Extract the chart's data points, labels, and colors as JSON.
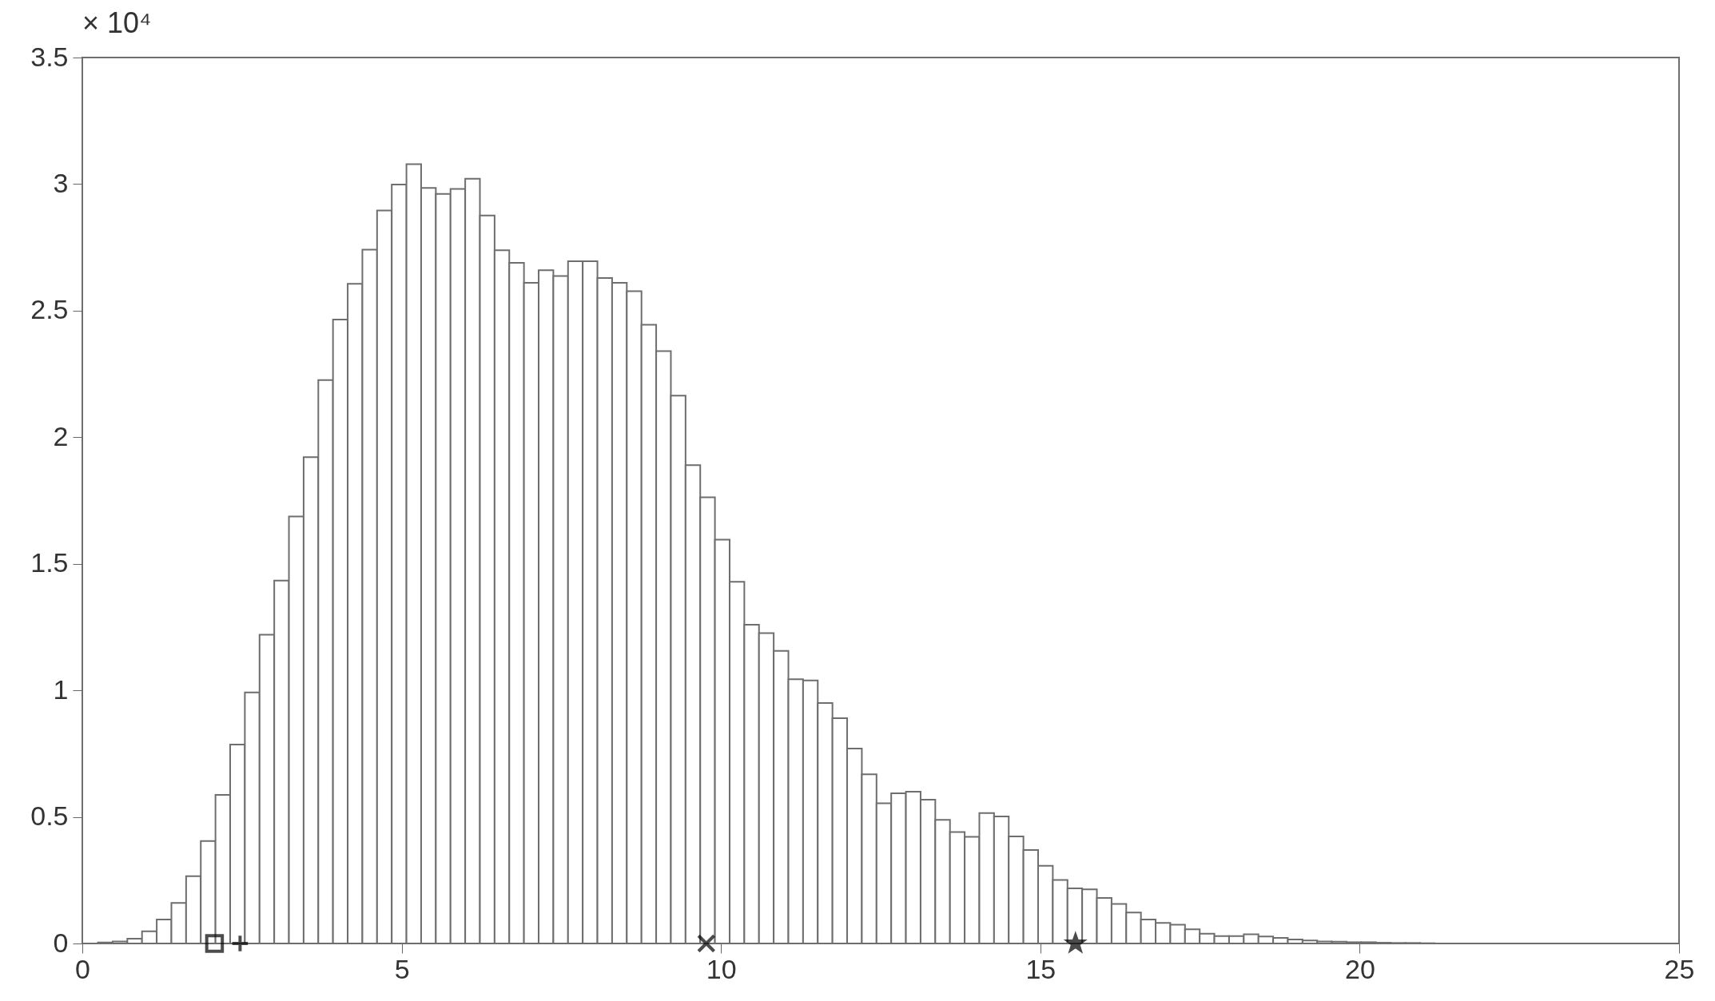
{
  "chart_data": {
    "type": "histogram",
    "color": "#ffffff",
    "bins": [
      0.245,
      0.475,
      0.705,
      0.935,
      1.165,
      1.395,
      1.625,
      1.855,
      2.085,
      2.315,
      2.545,
      2.775,
      3.005,
      3.235,
      3.465,
      3.695,
      3.925,
      4.155,
      4.385,
      4.615,
      4.845,
      5.075,
      5.305,
      5.535,
      5.765,
      5.995,
      6.225,
      6.455,
      6.685,
      6.915,
      7.145,
      7.375,
      7.605,
      7.835,
      8.065,
      8.295,
      8.525,
      8.755,
      8.985,
      9.215,
      9.445,
      9.675,
      9.905,
      10.135,
      10.365,
      10.595,
      10.825,
      11.055,
      11.285,
      11.515,
      11.745,
      11.975,
      12.205,
      12.435,
      12.665,
      12.895,
      13.125,
      13.355,
      13.585,
      13.815,
      14.045,
      14.275,
      14.505,
      14.735,
      14.965,
      15.195,
      15.425,
      15.655,
      15.885,
      16.115,
      16.345,
      16.575,
      16.805,
      17.035,
      17.265,
      17.495,
      17.725,
      17.955,
      18.185,
      18.415,
      18.645,
      18.875,
      19.105,
      19.335,
      19.565,
      19.795,
      20.025,
      20.255,
      20.485,
      20.715,
      20.945,
      21.175
    ],
    "values": [
      0.004,
      0.008,
      0.019,
      0.048,
      0.095,
      0.16,
      0.266,
      0.405,
      0.587,
      0.786,
      0.992,
      1.22,
      1.434,
      1.687,
      1.921,
      2.226,
      2.465,
      2.606,
      2.741,
      2.896,
      2.998,
      3.079,
      2.985,
      2.961,
      2.981,
      3.021,
      2.876,
      2.739,
      2.689,
      2.61,
      2.66,
      2.637,
      2.695,
      2.695,
      2.629,
      2.61,
      2.577,
      2.444,
      2.34,
      2.164,
      1.89,
      1.763,
      1.595,
      1.429,
      1.259,
      1.226,
      1.156,
      1.044,
      1.039,
      0.95,
      0.89,
      0.77,
      0.668,
      0.554,
      0.593,
      0.6,
      0.568,
      0.488,
      0.44,
      0.421,
      0.515,
      0.502,
      0.423,
      0.369,
      0.307,
      0.251,
      0.218,
      0.214,
      0.18,
      0.156,
      0.122,
      0.095,
      0.081,
      0.074,
      0.056,
      0.039,
      0.029,
      0.029,
      0.036,
      0.028,
      0.022,
      0.016,
      0.012,
      0.008,
      0.007,
      0.005,
      0.005,
      0.003,
      0.002,
      0.002,
      0.001
    ],
    "series": [
      {
        "type": "scatter",
        "marker": "square",
        "color": "#000000",
        "x": [
          2.07
        ],
        "values": [
          0
        ]
      },
      {
        "type": "scatter",
        "marker": "cross",
        "color": "#000000",
        "x": [
          2.47
        ],
        "values": [
          0
        ]
      },
      {
        "type": "scatter",
        "marker": "x",
        "color": "#000000",
        "x": [
          9.77
        ],
        "values": [
          0
        ]
      },
      {
        "type": "scatter",
        "marker": "star",
        "color": "#000000",
        "x": [
          15.55
        ],
        "values": [
          0
        ]
      }
    ],
    "annotations": [
      "× 10⁴"
    ],
    "xlim": [
      0,
      25
    ],
    "xticks": [
      0,
      5,
      10,
      15,
      20,
      25
    ],
    "ylim": [
      0,
      3.5
    ],
    "yticks": [
      0,
      0.5,
      1,
      1.5,
      2,
      2.5,
      3,
      3.5
    ]
  }
}
